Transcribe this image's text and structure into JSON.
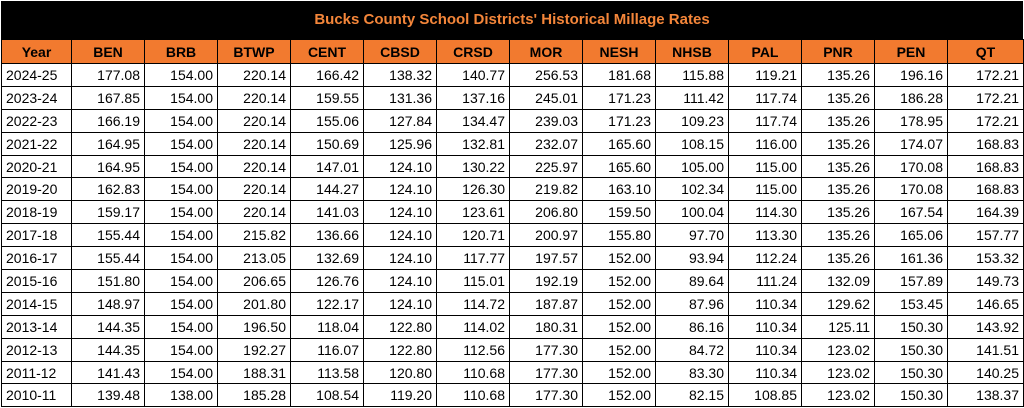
{
  "title": "Bucks County School Districts' Historical Millage Rates",
  "colors": {
    "header_bg": "#f27a2f",
    "title_bg": "#000000",
    "title_text": "#f4863a"
  },
  "columns": [
    "Year",
    "BEN",
    "BRB",
    "BTWP",
    "CENT",
    "CBSD",
    "CRSD",
    "MOR",
    "NESH",
    "NHSB",
    "PAL",
    "PNR",
    "PEN",
    "QT"
  ],
  "rows": [
    [
      "2024-25",
      "177.08",
      "154.00",
      "220.14",
      "166.42",
      "138.32",
      "140.77",
      "256.53",
      "181.68",
      "115.88",
      "119.21",
      "135.26",
      "196.16",
      "172.21"
    ],
    [
      "2023-24",
      "167.85",
      "154.00",
      "220.14",
      "159.55",
      "131.36",
      "137.16",
      "245.01",
      "171.23",
      "111.42",
      "117.74",
      "135.26",
      "186.28",
      "172.21"
    ],
    [
      "2022-23",
      "166.19",
      "154.00",
      "220.14",
      "155.06",
      "127.84",
      "134.47",
      "239.03",
      "171.23",
      "109.23",
      "117.74",
      "135.26",
      "178.95",
      "172.21"
    ],
    [
      "2021-22",
      "164.95",
      "154.00",
      "220.14",
      "150.69",
      "125.96",
      "132.81",
      "232.07",
      "165.60",
      "108.15",
      "116.00",
      "135.26",
      "174.07",
      "168.83"
    ],
    [
      "2020-21",
      "164.95",
      "154.00",
      "220.14",
      "147.01",
      "124.10",
      "130.22",
      "225.97",
      "165.60",
      "105.00",
      "115.00",
      "135.26",
      "170.08",
      "168.83"
    ],
    [
      "2019-20",
      "162.83",
      "154.00",
      "220.14",
      "144.27",
      "124.10",
      "126.30",
      "219.82",
      "163.10",
      "102.34",
      "115.00",
      "135.26",
      "170.08",
      "168.83"
    ],
    [
      "2018-19",
      "159.17",
      "154.00",
      "220.14",
      "141.03",
      "124.10",
      "123.61",
      "206.80",
      "159.50",
      "100.04",
      "114.30",
      "135.26",
      "167.54",
      "164.39"
    ],
    [
      "2017-18",
      "155.44",
      "154.00",
      "215.82",
      "136.66",
      "124.10",
      "120.71",
      "200.97",
      "155.80",
      "97.70",
      "113.30",
      "135.26",
      "165.06",
      "157.77"
    ],
    [
      "2016-17",
      "155.44",
      "154.00",
      "213.05",
      "132.69",
      "124.10",
      "117.77",
      "197.57",
      "152.00",
      "93.94",
      "112.24",
      "135.26",
      "161.36",
      "153.32"
    ],
    [
      "2015-16",
      "151.80",
      "154.00",
      "206.65",
      "126.76",
      "124.10",
      "115.01",
      "192.19",
      "152.00",
      "89.64",
      "111.24",
      "132.09",
      "157.89",
      "149.73"
    ],
    [
      "2014-15",
      "148.97",
      "154.00",
      "201.80",
      "122.17",
      "124.10",
      "114.72",
      "187.87",
      "152.00",
      "87.96",
      "110.34",
      "129.62",
      "153.45",
      "146.65"
    ],
    [
      "2013-14",
      "144.35",
      "154.00",
      "196.50",
      "118.04",
      "122.80",
      "114.02",
      "180.31",
      "152.00",
      "86.16",
      "110.34",
      "125.11",
      "150.30",
      "143.92"
    ],
    [
      "2012-13",
      "144.35",
      "154.00",
      "192.27",
      "116.07",
      "122.80",
      "112.56",
      "177.30",
      "152.00",
      "84.72",
      "110.34",
      "123.02",
      "150.30",
      "141.51"
    ],
    [
      "2011-12",
      "141.43",
      "154.00",
      "188.31",
      "113.58",
      "120.80",
      "110.68",
      "177.30",
      "152.00",
      "83.30",
      "110.34",
      "123.02",
      "150.30",
      "140.25"
    ],
    [
      "2010-11",
      "139.48",
      "138.00",
      "185.28",
      "108.54",
      "119.20",
      "110.68",
      "177.30",
      "152.00",
      "82.15",
      "108.85",
      "123.02",
      "150.30",
      "138.37"
    ]
  ]
}
